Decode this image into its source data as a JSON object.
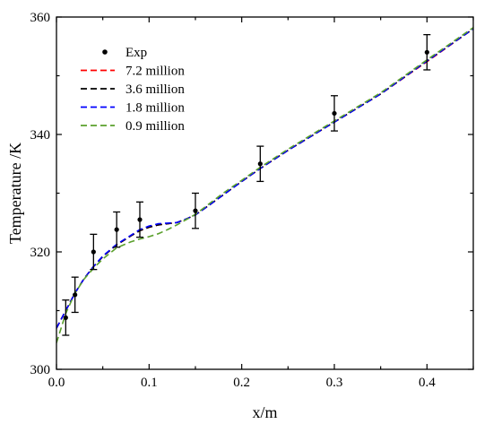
{
  "chart_data": {
    "type": "line",
    "title": "",
    "xlabel": "x/m",
    "ylabel": "Temperature /K",
    "xlim": [
      0,
      0.45
    ],
    "ylim": [
      300,
      360
    ],
    "xticks": [
      0.0,
      0.1,
      0.2,
      0.3,
      0.4
    ],
    "xtick_labels": [
      "0.0",
      "0.1",
      "0.2",
      "0.3",
      "0.4"
    ],
    "yticks": [
      300,
      320,
      340,
      360
    ],
    "ytick_labels": [
      "300",
      "320",
      "340",
      "360"
    ],
    "grid": false,
    "legend_position": "top-left",
    "experimental": {
      "name": "Exp",
      "marker": "dot",
      "color": "#000000",
      "x": [
        0.01,
        0.02,
        0.04,
        0.065,
        0.09,
        0.15,
        0.22,
        0.3,
        0.4
      ],
      "y": [
        308.8,
        312.7,
        320.0,
        323.8,
        325.5,
        327.0,
        335.0,
        343.6,
        354.0
      ],
      "err": [
        3.0,
        3.0,
        3.0,
        3.0,
        3.0,
        3.0,
        3.0,
        3.0,
        3.0
      ]
    },
    "series": [
      {
        "name": "7.2 million",
        "color": "#ff0000",
        "dash": "dashed",
        "x": [
          0.0,
          0.01,
          0.02,
          0.03,
          0.04,
          0.05,
          0.065,
          0.08,
          0.09,
          0.1,
          0.11,
          0.12,
          0.13,
          0.14,
          0.15,
          0.16,
          0.18,
          0.2,
          0.22,
          0.25,
          0.3,
          0.35,
          0.4,
          0.45
        ],
        "y": [
          307.0,
          310.0,
          313.0,
          315.5,
          317.5,
          319.2,
          321.2,
          322.7,
          323.6,
          324.2,
          324.6,
          324.8,
          325.0,
          325.6,
          326.3,
          327.4,
          329.7,
          332.0,
          334.2,
          337.3,
          342.1,
          346.9,
          352.4,
          358.0
        ]
      },
      {
        "name": "3.6 million",
        "color": "#000000",
        "dash": "dashed",
        "x": [
          0.0,
          0.01,
          0.02,
          0.03,
          0.04,
          0.05,
          0.065,
          0.08,
          0.09,
          0.1,
          0.11,
          0.12,
          0.13,
          0.14,
          0.15,
          0.16,
          0.18,
          0.2,
          0.22,
          0.25,
          0.3,
          0.35,
          0.4,
          0.45
        ],
        "y": [
          307.0,
          310.0,
          313.0,
          315.5,
          317.5,
          319.2,
          321.2,
          322.7,
          323.6,
          324.2,
          324.6,
          324.8,
          325.0,
          325.6,
          326.3,
          327.4,
          329.7,
          332.0,
          334.2,
          337.3,
          342.1,
          346.9,
          352.5,
          358.0
        ]
      },
      {
        "name": "1.8 million",
        "color": "#0000ff",
        "dash": "dashed",
        "x": [
          0.0,
          0.01,
          0.02,
          0.03,
          0.04,
          0.05,
          0.065,
          0.08,
          0.09,
          0.1,
          0.11,
          0.12,
          0.13,
          0.14,
          0.15,
          0.16,
          0.18,
          0.2,
          0.22,
          0.25,
          0.3,
          0.35,
          0.4,
          0.45
        ],
        "y": [
          307.0,
          310.0,
          313.0,
          315.5,
          317.5,
          319.3,
          321.3,
          322.8,
          323.8,
          324.4,
          324.8,
          324.9,
          325.0,
          325.6,
          326.3,
          327.4,
          329.7,
          332.0,
          334.2,
          337.3,
          342.1,
          346.9,
          352.5,
          358.0
        ]
      },
      {
        "name": "0.9 million",
        "color": "#5aa02c",
        "dash": "dashed",
        "x": [
          0.0,
          0.01,
          0.02,
          0.03,
          0.04,
          0.05,
          0.065,
          0.08,
          0.09,
          0.1,
          0.11,
          0.12,
          0.13,
          0.14,
          0.15,
          0.16,
          0.18,
          0.2,
          0.22,
          0.25,
          0.3,
          0.35,
          0.4,
          0.45
        ],
        "y": [
          304.5,
          309.5,
          313.0,
          315.4,
          317.2,
          318.8,
          320.7,
          321.7,
          322.2,
          322.6,
          323.1,
          323.8,
          324.6,
          325.5,
          326.4,
          327.6,
          330.0,
          332.2,
          334.4,
          337.5,
          342.3,
          347.1,
          352.7,
          358.2
        ]
      }
    ]
  }
}
